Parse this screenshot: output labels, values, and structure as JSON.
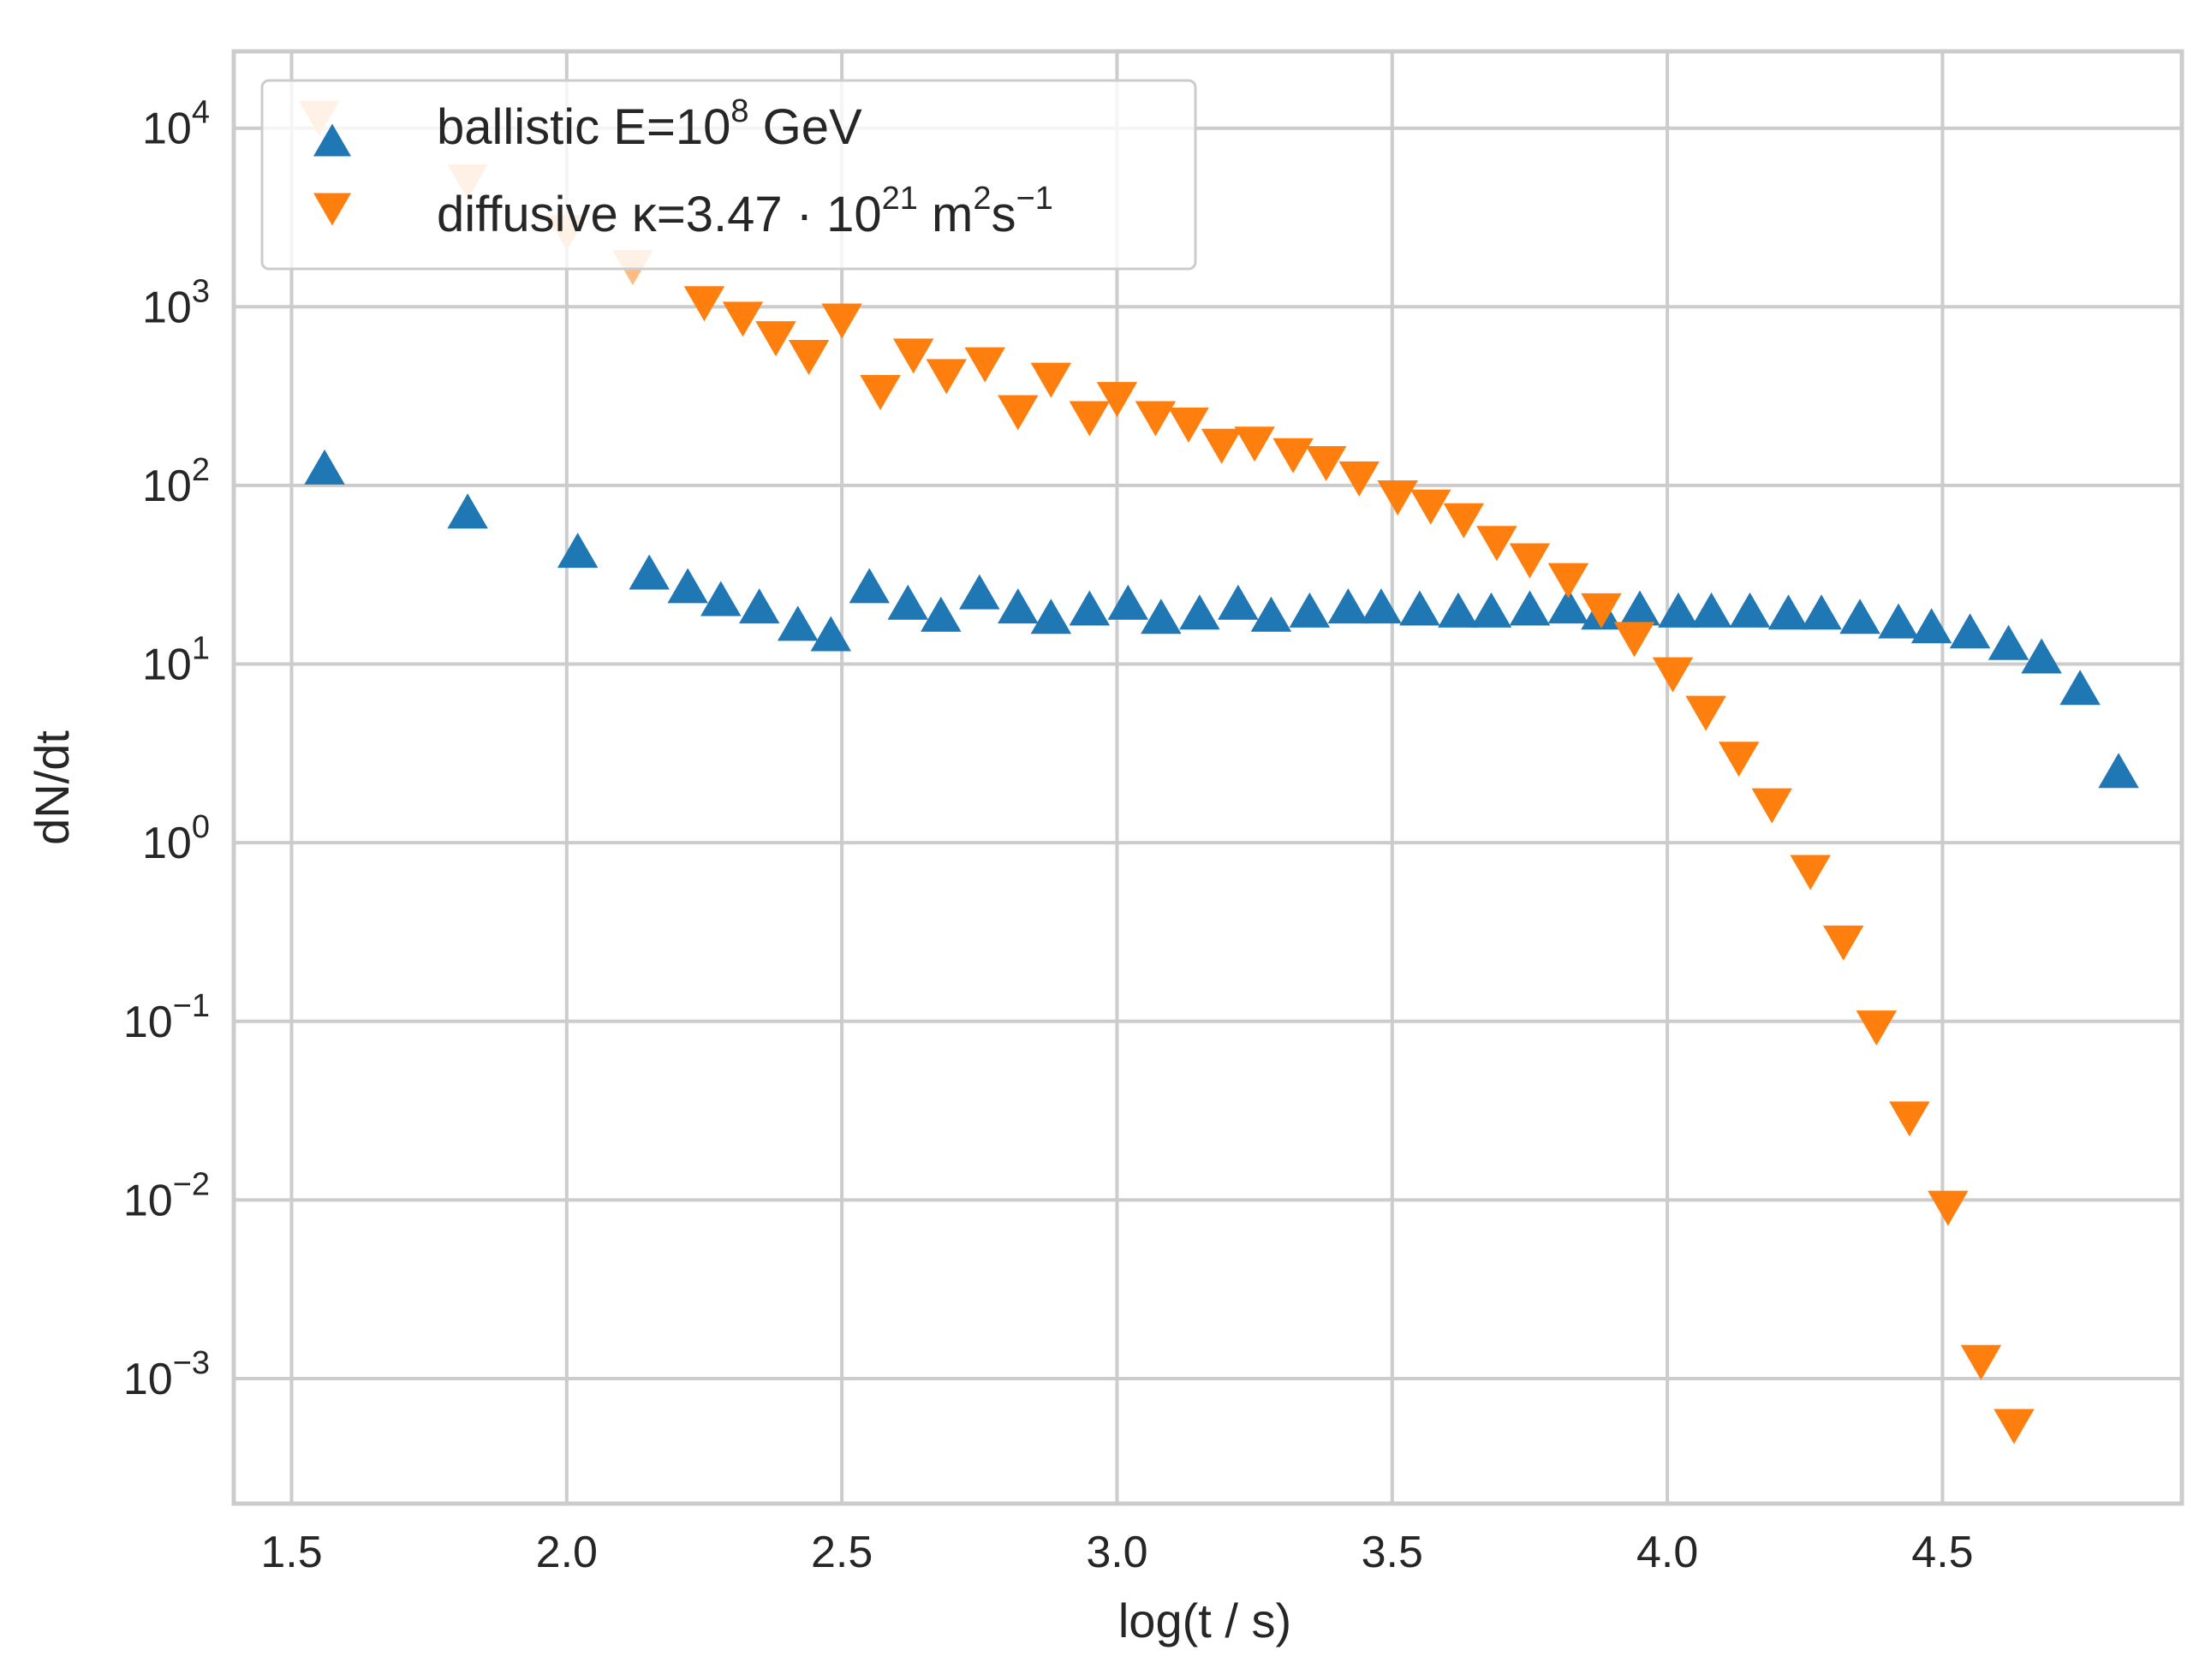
{
  "chart_data": {
    "type": "scatter",
    "title": "",
    "xlabel": "log(t / s)",
    "ylabel": "dN/dt",
    "xlim": [
      1.395,
      4.935
    ],
    "ylim_log10": [
      -3.7,
      4.43
    ],
    "yscale": "log",
    "grid": true,
    "legend_position": "upper-left",
    "x_ticks": [
      "1.5",
      "2.0",
      "2.5",
      "3.0",
      "3.5",
      "4.0",
      "4.5"
    ],
    "x_tick_values": [
      1.5,
      2.0,
      2.5,
      3.0,
      3.5,
      4.0,
      4.5
    ],
    "y_tick_exponents": [
      4,
      3,
      2,
      1,
      0,
      -1,
      -2,
      -3
    ],
    "y_tick_base": "10",
    "y_tick_sups": [
      "4",
      "3",
      "2",
      "1",
      "0",
      "−1",
      "−2",
      "−3"
    ],
    "series": [
      {
        "name": "ballistic",
        "label_main": "ballistic E=10",
        "label_sup": "8",
        "label_tail": " GeV",
        "marker": "triangle-up",
        "color": "#1f77b4",
        "x": [
          1.56,
          1.82,
          2.02,
          2.15,
          2.22,
          2.28,
          2.35,
          2.42,
          2.48,
          2.55,
          2.62,
          2.68,
          2.75,
          2.82,
          2.88,
          2.95,
          3.02,
          3.08,
          3.15,
          3.22,
          3.28,
          3.35,
          3.42,
          3.48,
          3.55,
          3.62,
          3.68,
          3.75,
          3.82,
          3.88,
          3.95,
          4.02,
          4.08,
          4.15,
          4.22,
          4.28,
          4.35,
          4.42,
          4.48,
          4.55,
          4.62,
          4.68,
          4.75,
          4.82
        ],
        "y": [
          120,
          68,
          41,
          31,
          26,
          22,
          20,
          16,
          14,
          26,
          21,
          18,
          24,
          20,
          17.5,
          19.5,
          21,
          17.5,
          18.5,
          21,
          18,
          19,
          20,
          20,
          19.5,
          19,
          19,
          19.5,
          20,
          18.5,
          19.5,
          19,
          19,
          19,
          18.5,
          18.5,
          17.5,
          16.5,
          15.5,
          14.5,
          12.5,
          10.5,
          7,
          2.4
        ]
      },
      {
        "name": "diffusive",
        "label_main": "diffusive κ=3.47 · 10",
        "label_sup": "21",
        "label_tail": " m",
        "label_sup2": "2",
        "label_tail2": "s",
        "label_sup3": "−1",
        "marker": "triangle-down",
        "color": "#ff7f0e",
        "faded_color": "#ffbb82",
        "faded_until_index": 3,
        "x": [
          1.55,
          1.82,
          2.0,
          2.12,
          2.25,
          2.32,
          2.38,
          2.44,
          2.5,
          2.57,
          2.63,
          2.69,
          2.76,
          2.82,
          2.88,
          2.95,
          3.0,
          3.07,
          3.13,
          3.19,
          3.25,
          3.32,
          3.38,
          3.44,
          3.51,
          3.57,
          3.63,
          3.69,
          3.75,
          3.82,
          3.88,
          3.94,
          4.01,
          4.07,
          4.13,
          4.19,
          4.26,
          4.32,
          4.38,
          4.44,
          4.51,
          4.57,
          4.63
        ],
        "y": [
          12000,
          5300,
          2750,
          1750,
          1100,
          900,
          700,
          550,
          880,
          350,
          560,
          430,
          500,
          270,
          410,
          250,
          320,
          250,
          230,
          175,
          180,
          155,
          140,
          115,
          90,
          80,
          67,
          50,
          40,
          31,
          21,
          14.5,
          9.2,
          5.6,
          3.1,
          1.7,
          0.72,
          0.29,
          0.097,
          0.03,
          0.0095,
          0.0013,
          0.00057
        ]
      }
    ]
  }
}
